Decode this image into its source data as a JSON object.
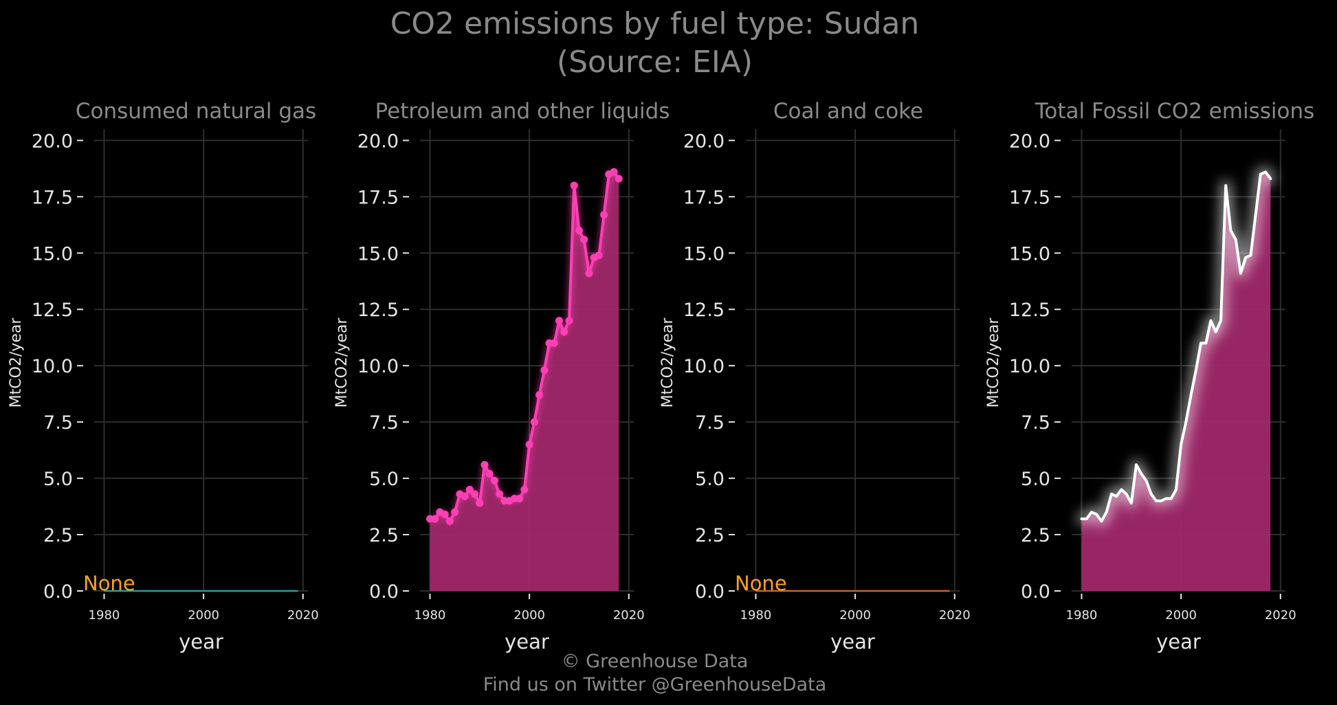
{
  "figure": {
    "title_line1": "CO2 emissions by fuel type: Sudan",
    "title_line2": "(Source: EIA)",
    "footer_line1": "© Greenhouse Data",
    "footer_line2": "Find us on Twitter @GreenhouseData"
  },
  "colors": {
    "background": "#000000",
    "grid": "#2e2e2e",
    "text": "#8a8a8a",
    "tick_text": "#e6e6e6",
    "pink_line": "#ff3fb4",
    "pink_fill": "#a0286a",
    "total_line": "#ffffff",
    "gas_line": "#1fa39b",
    "coal_line": "#c8641e",
    "none_label": "#ffa020"
  },
  "chart_data": [
    {
      "type": "line",
      "title": "Consumed natural gas",
      "xlabel": "year",
      "ylabel": "MtCO2/year",
      "xlim": [
        1978,
        2021
      ],
      "ylim": [
        0,
        20.5
      ],
      "xticks": [
        1980,
        2000,
        2020
      ],
      "yticks": [
        0.0,
        2.5,
        5.0,
        7.5,
        10.0,
        12.5,
        15.0,
        17.5,
        20.0
      ],
      "annotation": "None",
      "line_color": "#1fa39b",
      "series": [
        {
          "x": [
            1980,
            2019
          ],
          "y": [
            0,
            0
          ]
        }
      ]
    },
    {
      "type": "area",
      "title": "Petroleum and other liquids",
      "xlabel": "year",
      "ylabel": "MtCO2/year",
      "xlim": [
        1978,
        2021
      ],
      "ylim": [
        0,
        20.5
      ],
      "xticks": [
        1980,
        2000,
        2020
      ],
      "yticks": [
        0.0,
        2.5,
        5.0,
        7.5,
        10.0,
        12.5,
        15.0,
        17.5,
        20.0
      ],
      "line_color": "#ff3fb4",
      "markers": true,
      "series": [
        {
          "x": [
            1980,
            1981,
            1982,
            1983,
            1984,
            1985,
            1986,
            1987,
            1988,
            1989,
            1990,
            1991,
            1992,
            1993,
            1994,
            1995,
            1996,
            1997,
            1998,
            1999,
            2000,
            2001,
            2002,
            2003,
            2004,
            2005,
            2006,
            2007,
            2008,
            2009,
            2010,
            2011,
            2012,
            2013,
            2014,
            2015,
            2016,
            2017,
            2018
          ],
          "y": [
            3.2,
            3.2,
            3.5,
            3.4,
            3.1,
            3.5,
            4.3,
            4.2,
            4.5,
            4.3,
            3.9,
            5.6,
            5.2,
            4.9,
            4.3,
            4.0,
            4.0,
            4.1,
            4.1,
            4.5,
            6.5,
            7.5,
            8.7,
            9.8,
            11.0,
            11.0,
            12.0,
            11.5,
            12.0,
            18.0,
            16.0,
            15.6,
            14.1,
            14.8,
            14.9,
            16.7,
            18.5,
            18.6,
            18.3
          ]
        }
      ]
    },
    {
      "type": "line",
      "title": "Coal and coke",
      "xlabel": "year",
      "ylabel": "MtCO2/year",
      "xlim": [
        1978,
        2021
      ],
      "ylim": [
        0,
        20.5
      ],
      "xticks": [
        1980,
        2000,
        2020
      ],
      "yticks": [
        0.0,
        2.5,
        5.0,
        7.5,
        10.0,
        12.5,
        15.0,
        17.5,
        20.0
      ],
      "annotation": "None",
      "line_color": "#c8641e",
      "series": [
        {
          "x": [
            1980,
            2019
          ],
          "y": [
            0,
            0
          ]
        }
      ]
    },
    {
      "type": "area",
      "title": "Total Fossil CO2 emissions",
      "xlabel": "year",
      "ylabel": "MtCO2/year",
      "xlim": [
        1978,
        2021
      ],
      "ylim": [
        0,
        20.5
      ],
      "xticks": [
        1980,
        2000,
        2020
      ],
      "yticks": [
        0.0,
        2.5,
        5.0,
        7.5,
        10.0,
        12.5,
        15.0,
        17.5,
        20.0
      ],
      "line_color": "#ffffff",
      "glow": true,
      "series": [
        {
          "x": [
            1980,
            1981,
            1982,
            1983,
            1984,
            1985,
            1986,
            1987,
            1988,
            1989,
            1990,
            1991,
            1992,
            1993,
            1994,
            1995,
            1996,
            1997,
            1998,
            1999,
            2000,
            2001,
            2002,
            2003,
            2004,
            2005,
            2006,
            2007,
            2008,
            2009,
            2010,
            2011,
            2012,
            2013,
            2014,
            2015,
            2016,
            2017,
            2018
          ],
          "y": [
            3.2,
            3.2,
            3.5,
            3.4,
            3.1,
            3.5,
            4.3,
            4.2,
            4.5,
            4.3,
            3.9,
            5.6,
            5.2,
            4.9,
            4.3,
            4.0,
            4.0,
            4.1,
            4.1,
            4.5,
            6.5,
            7.5,
            8.7,
            9.8,
            11.0,
            11.0,
            12.0,
            11.5,
            12.0,
            18.0,
            16.0,
            15.6,
            14.1,
            14.8,
            14.9,
            16.7,
            18.5,
            18.6,
            18.3
          ]
        }
      ]
    }
  ]
}
